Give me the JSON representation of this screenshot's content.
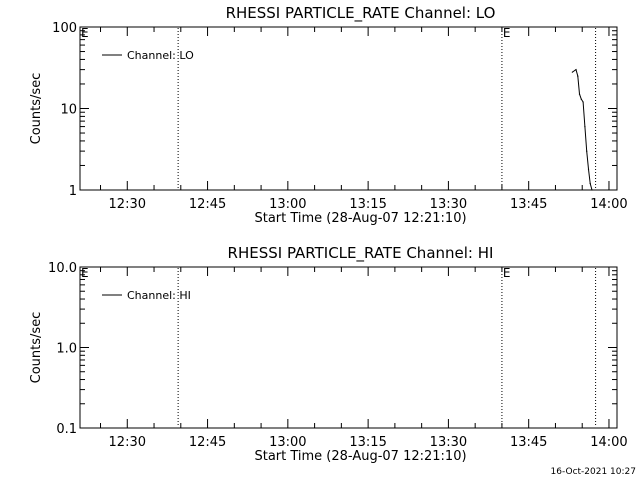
{
  "chart_data": [
    {
      "type": "line",
      "title": "RHESSI PARTICLE_RATE Channel: LO",
      "xlabel": "Start Time (28-Aug-07 12:21:10)",
      "ylabel": "Counts/sec",
      "y_scale": "log",
      "ylim": [
        1,
        100
      ],
      "y_ticks": [
        1,
        10,
        100
      ],
      "y_tick_labels": [
        "1",
        "10",
        "100"
      ],
      "xlim": [
        "12:21:10",
        "14:01:30"
      ],
      "x_ticks": [
        "12:30",
        "12:45",
        "13:00",
        "13:15",
        "13:30",
        "13:45",
        "14:00"
      ],
      "legend": {
        "placement": "top-left",
        "entries": [
          "Channel: LO"
        ]
      },
      "markers": [
        {
          "label": "E",
          "time": "12:21:10"
        },
        {
          "label": "E",
          "time": "13:40:00"
        }
      ],
      "vlines": [
        "12:39:30",
        "13:40:00",
        "13:57:30"
      ],
      "series": [
        {
          "name": "Channel: LO",
          "x": [
            "13:53:10",
            "13:53:50",
            "13:54:10",
            "13:54:30",
            "13:54:50",
            "13:55:10",
            "13:55:30",
            "13:55:50",
            "13:56:10",
            "13:56:30",
            "13:56:50"
          ],
          "y": [
            28,
            30,
            25,
            15,
            13,
            12,
            6,
            3,
            1.8,
            1.2,
            1.0
          ]
        }
      ]
    },
    {
      "type": "line",
      "title": "RHESSI PARTICLE_RATE Channel: HI",
      "xlabel": "Start Time (28-Aug-07 12:21:10)",
      "ylabel": "Counts/sec",
      "y_scale": "log",
      "ylim": [
        0.1,
        10
      ],
      "y_ticks": [
        0.1,
        1,
        10
      ],
      "y_tick_labels": [
        "0.1",
        "1.0",
        "10.0"
      ],
      "xlim": [
        "12:21:10",
        "14:01:30"
      ],
      "x_ticks": [
        "12:30",
        "12:45",
        "13:00",
        "13:15",
        "13:30",
        "13:45",
        "14:00"
      ],
      "legend": {
        "placement": "top-left",
        "entries": [
          "Channel: HI"
        ]
      },
      "markers": [
        {
          "label": "E",
          "time": "12:21:10"
        },
        {
          "label": "E",
          "time": "13:40:00"
        }
      ],
      "vlines": [
        "12:39:30",
        "13:40:00",
        "13:57:30"
      ],
      "series": [
        {
          "name": "Channel: HI",
          "x": [],
          "y": []
        }
      ]
    }
  ],
  "footer": {
    "timestamp": "16-Oct-2021 10:27"
  }
}
